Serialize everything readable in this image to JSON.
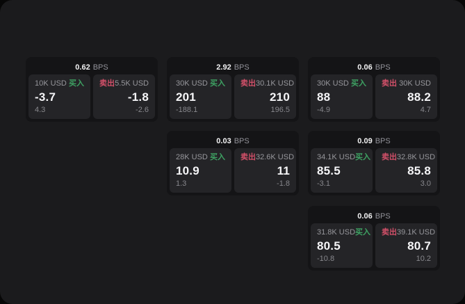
{
  "page": {
    "outer_background": "#070707",
    "panel_background": "#1b1b1d"
  },
  "labels": {
    "bps_unit": "BPS",
    "buy_tag": "买入",
    "sell_tag": "卖出"
  },
  "colors": {
    "buy_green": "#3ea263",
    "sell_red": "#d25069",
    "card_background": "#141416",
    "side_panel_background": "#242427",
    "text_primary": "#f5f5f7",
    "text_secondary": "#97979c"
  },
  "cards": [
    {
      "bps": "0.62",
      "row": 1,
      "col": 1,
      "buy": {
        "notional": "10K USD",
        "value": "-3.7",
        "sub": "4.3"
      },
      "sell": {
        "notional": "5.5K USD",
        "value": "-1.8",
        "sub": "-2.6"
      }
    },
    {
      "bps": "2.92",
      "row": 1,
      "col": 2,
      "buy": {
        "notional": "30K USD",
        "value": "201",
        "sub": "-188.1"
      },
      "sell": {
        "notional": "30.1K USD",
        "value": "210",
        "sub": "196.5"
      }
    },
    {
      "bps": "0.06",
      "row": 1,
      "col": 3,
      "buy": {
        "notional": "30K USD",
        "value": "88",
        "sub": "-4.9"
      },
      "sell": {
        "notional": "30K USD",
        "value": "88.2",
        "sub": "4.7"
      }
    },
    {
      "bps": "0.03",
      "row": 2,
      "col": 2,
      "buy": {
        "notional": "28K USD",
        "value": "10.9",
        "sub": "1.3"
      },
      "sell": {
        "notional": "32.6K USD",
        "value": "11",
        "sub": "-1.8"
      }
    },
    {
      "bps": "0.09",
      "row": 2,
      "col": 3,
      "buy": {
        "notional": "34.1K USD",
        "value": "85.5",
        "sub": "-3.1"
      },
      "sell": {
        "notional": "32.8K USD",
        "value": "85.8",
        "sub": "3.0"
      }
    },
    {
      "bps": "0.06",
      "row": 3,
      "col": 3,
      "buy": {
        "notional": "31.8K USD",
        "value": "80.5",
        "sub": "-10.8"
      },
      "sell": {
        "notional": "39.1K USD",
        "value": "80.7",
        "sub": "10.2"
      }
    }
  ]
}
